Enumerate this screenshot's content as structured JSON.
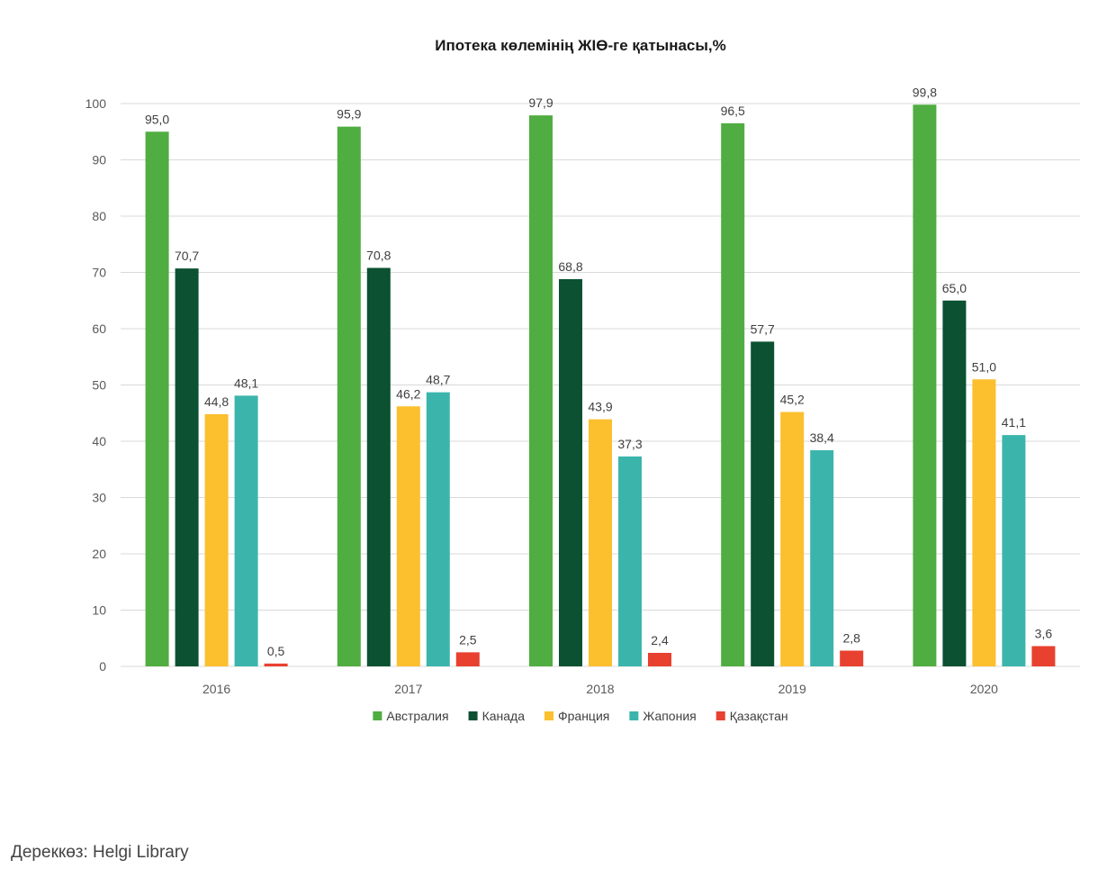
{
  "chart_data": {
    "type": "bar",
    "title": "Ипотека көлемінің ЖІӨ-ге қатынасы,%",
    "xlabel": "",
    "ylabel": "",
    "categories": [
      "2016",
      "2017",
      "2018",
      "2019",
      "2020"
    ],
    "series": [
      {
        "name": "Австралия",
        "color": "#50ad41",
        "values": [
          95.0,
          95.9,
          97.9,
          96.5,
          99.8
        ]
      },
      {
        "name": "Канада",
        "color": "#0b5132",
        "values": [
          70.7,
          70.8,
          68.8,
          57.7,
          65.0
        ]
      },
      {
        "name": "Франция",
        "color": "#fcbf2e",
        "values": [
          44.8,
          46.2,
          43.9,
          45.2,
          51.0
        ]
      },
      {
        "name": "Жапония",
        "color": "#3bb5ac",
        "values": [
          48.1,
          48.7,
          37.3,
          38.4,
          41.1
        ]
      },
      {
        "name": "Қазақстан",
        "color": "#e8412f",
        "values": [
          0.5,
          2.5,
          2.4,
          2.8,
          3.6
        ]
      }
    ],
    "ylim": [
      0,
      100
    ],
    "yticks": [
      0,
      10,
      20,
      30,
      40,
      50,
      60,
      70,
      80,
      90,
      100
    ],
    "grid": true,
    "data_labels": true,
    "legend": "bottom"
  },
  "source": "Дереккөз: Helgi Library"
}
